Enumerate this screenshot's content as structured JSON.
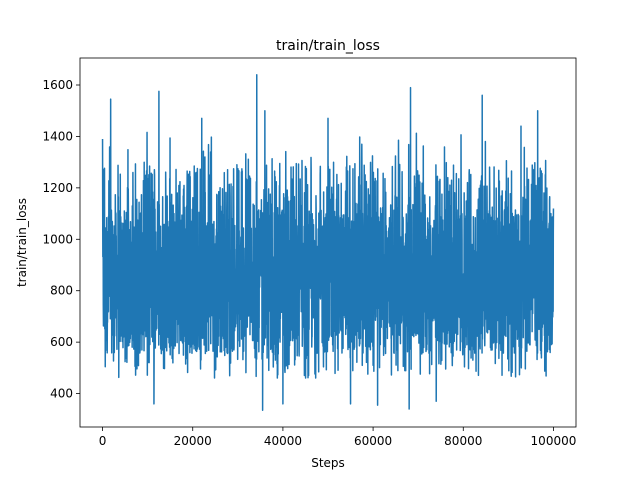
{
  "chart_data": {
    "type": "line",
    "title": "train/train_loss",
    "xlabel": "Steps",
    "ylabel": "train/train_loss",
    "xlim": [
      -5000,
      105000
    ],
    "ylim": [
      270,
      1705
    ],
    "x_ticks": [
      0,
      20000,
      40000,
      60000,
      80000,
      100000
    ],
    "y_ticks": [
      400,
      600,
      800,
      1000,
      1200,
      1400,
      1600
    ],
    "grid": false,
    "legend": "none",
    "series": [
      {
        "color": "#1f77b4",
        "x": [
          0,
          100000
        ],
        "baseline_band": [
          555,
          1115
        ],
        "noise_range": [
          340,
          1640
        ],
        "peaks": [
          {
            "x": 0,
            "y": 1390
          },
          {
            "x": 1800,
            "y": 1545
          },
          {
            "x": 12500,
            "y": 1575
          },
          {
            "x": 22000,
            "y": 1470
          },
          {
            "x": 34200,
            "y": 1640
          },
          {
            "x": 36000,
            "y": 1500
          },
          {
            "x": 50000,
            "y": 1470
          },
          {
            "x": 68300,
            "y": 1590
          },
          {
            "x": 84200,
            "y": 1560
          },
          {
            "x": 92800,
            "y": 1440
          },
          {
            "x": 96500,
            "y": 1500
          }
        ],
        "troughs": [
          {
            "x": 11400,
            "y": 360
          },
          {
            "x": 35500,
            "y": 335
          },
          {
            "x": 40000,
            "y": 360
          },
          {
            "x": 55000,
            "y": 360
          },
          {
            "x": 61000,
            "y": 355
          },
          {
            "x": 68000,
            "y": 340
          },
          {
            "x": 74000,
            "y": 370
          }
        ]
      }
    ]
  }
}
